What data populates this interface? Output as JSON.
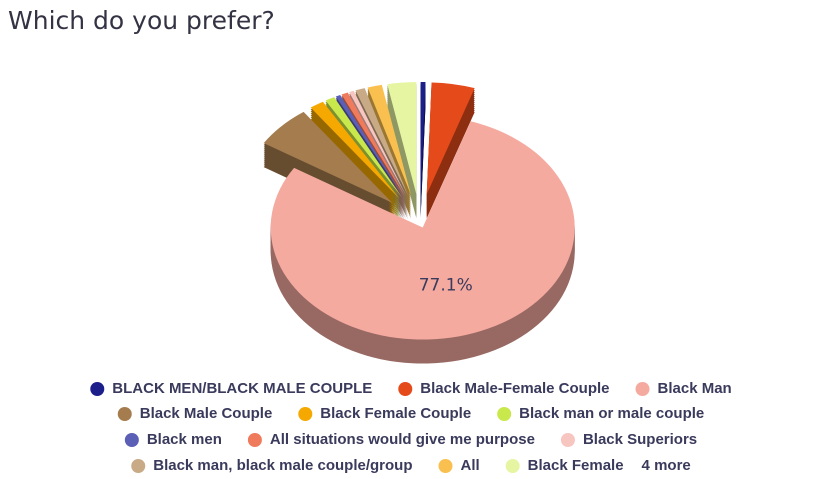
{
  "chart_data": {
    "type": "pie",
    "title": "Which do you prefer?",
    "categories": [
      "BLACK MEN/BLACK MALE COUPLE",
      "Black Male-Female Couple",
      "Black Man",
      "Black Male Couple",
      "Black Female Couple",
      "Black man or male couple",
      "Black men",
      "All situations would give me purpose",
      "Black Superiors",
      "Black man, black male couple/group",
      "All",
      "Black Female"
    ],
    "values": [
      0.5,
      4.5,
      77.1,
      6,
      1.5,
      1,
      0.5,
      0.7,
      0.5,
      1,
      1.5,
      3
    ],
    "value_labels": [
      null,
      null,
      "77.1%",
      null,
      null,
      null,
      null,
      null,
      null,
      null,
      null,
      null
    ],
    "colors": [
      "#1c1f8a",
      "#e54a1a",
      "#f5aaa0",
      "#a47c4e",
      "#f5a800",
      "#c8e84c",
      "#5b5fb5",
      "#f07a5c",
      "#f8c6c0",
      "#c9aa86",
      "#f9c050",
      "#e6f5a2"
    ],
    "legend_more": "4 more"
  }
}
